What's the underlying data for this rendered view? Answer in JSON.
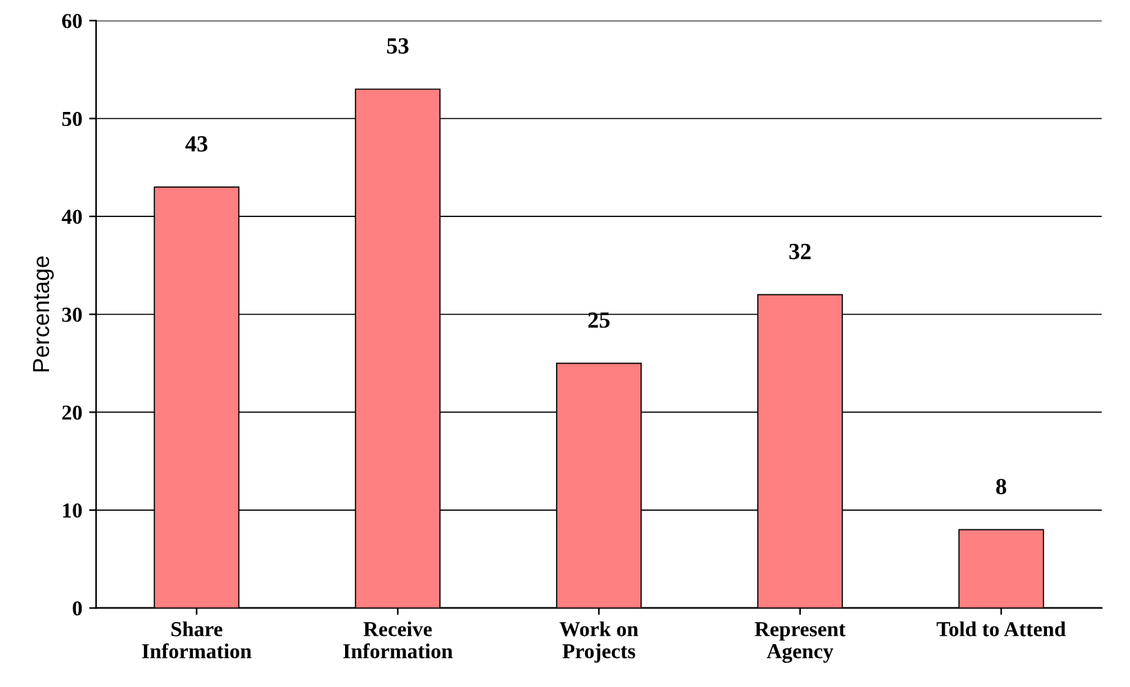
{
  "chart_data": {
    "type": "bar",
    "ylabel": "Percentage",
    "categories": [
      "Share\nInformation",
      "Receive\nInformation",
      "Work on\nProjects",
      "Represent\nAgency",
      "Told to Attend"
    ],
    "values": [
      43,
      53,
      25,
      32,
      8
    ],
    "color": "#ff8080",
    "ylim": [
      0,
      60
    ],
    "yticks": [
      0,
      10,
      20,
      30,
      40,
      50,
      60
    ],
    "grid": "y",
    "data_labels": true
  }
}
